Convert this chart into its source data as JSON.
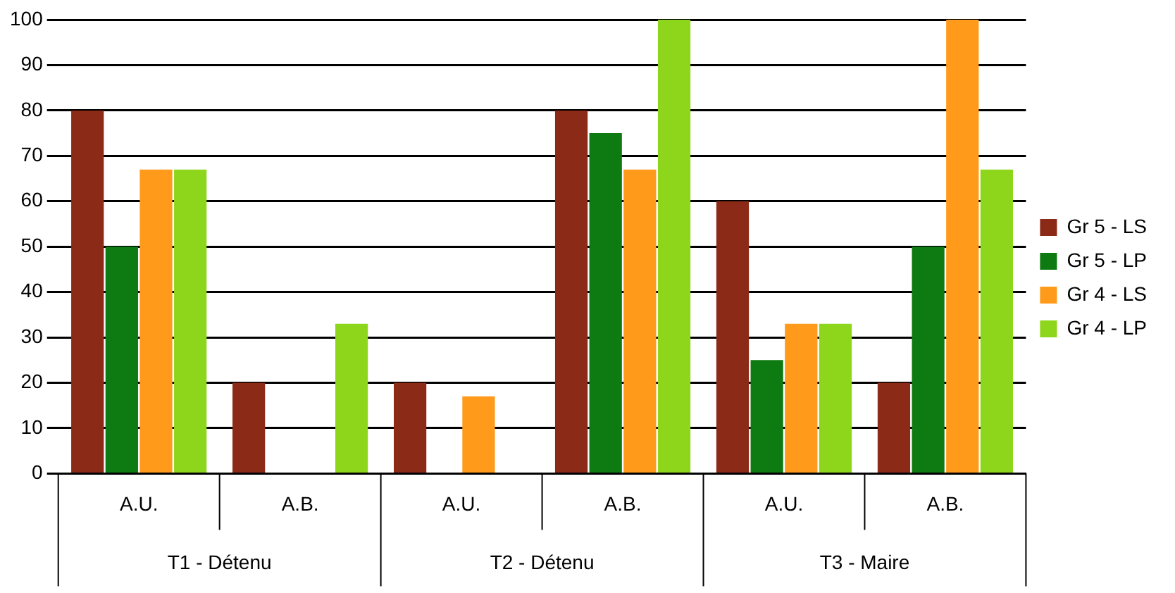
{
  "chart_data": {
    "type": "bar",
    "categories": [
      "A.U.",
      "A.B.",
      "A.U.",
      "A.B.",
      "A.U.",
      "A.B."
    ],
    "series": [
      {
        "name": "Gr 5 - LS",
        "color": "#8b2a17",
        "values": [
          80,
          20,
          20,
          80,
          60,
          20
        ]
      },
      {
        "name": "Gr 5 - LP",
        "color": "#0e7a12",
        "values": [
          50,
          0,
          0,
          75,
          25,
          50
        ]
      },
      {
        "name": "Gr 4 - LS",
        "color": "#ff9a1a",
        "values": [
          67,
          0,
          17,
          67,
          33,
          100
        ]
      },
      {
        "name": "Gr 4 - LP",
        "color": "#8ed61c",
        "values": [
          67,
          33,
          0,
          100,
          33,
          67
        ]
      }
    ],
    "ylim": [
      0,
      100
    ],
    "yticks": [
      0,
      10,
      20,
      30,
      40,
      50,
      60,
      70,
      80,
      90,
      100
    ],
    "grid": "y",
    "legend": "right",
    "annotations": [
      "T1 - Détenu",
      "T2 - Détenu",
      "T3 - Maire"
    ]
  }
}
